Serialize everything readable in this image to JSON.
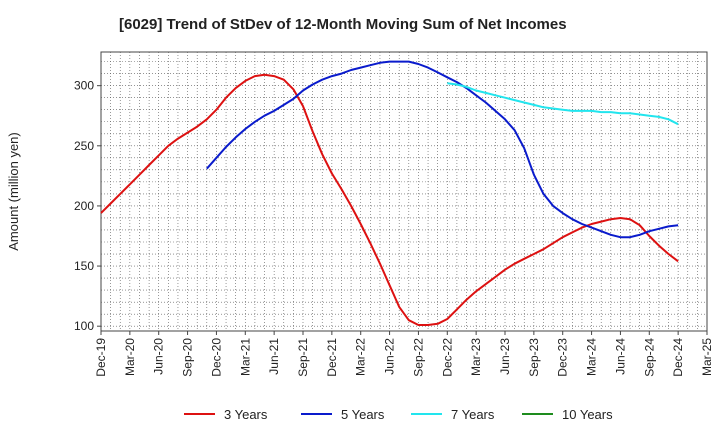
{
  "chart_data": {
    "type": "line",
    "title": "[6029]  Trend of StDev of 12-Month Moving Sum of Net Incomes",
    "ylabel": "Amount (million yen)",
    "xlabel": "",
    "ylim": [
      96,
      328
    ],
    "yticks": [
      100,
      150,
      200,
      250,
      300
    ],
    "xlim": [
      "2019-12",
      "2025-03"
    ],
    "xticks": [
      "Dec-19",
      "Mar-20",
      "Jun-20",
      "Sep-20",
      "Dec-20",
      "Mar-21",
      "Jun-21",
      "Sep-21",
      "Dec-21",
      "Mar-22",
      "Jun-22",
      "Sep-22",
      "Dec-22",
      "Mar-23",
      "Jun-23",
      "Sep-23",
      "Dec-23",
      "Mar-24",
      "Jun-24",
      "Sep-24",
      "Dec-24",
      "Mar-25"
    ],
    "grid": true,
    "legend_position": "bottom",
    "series": [
      {
        "name": "3 Years",
        "color": "#dd1111",
        "points": [
          [
            "2019-12",
            194
          ],
          [
            "2020-01",
            202
          ],
          [
            "2020-02",
            210
          ],
          [
            "2020-03",
            218
          ],
          [
            "2020-04",
            226
          ],
          [
            "2020-05",
            234
          ],
          [
            "2020-06",
            242
          ],
          [
            "2020-07",
            250
          ],
          [
            "2020-08",
            256
          ],
          [
            "2020-09",
            261
          ],
          [
            "2020-10",
            266
          ],
          [
            "2020-11",
            272
          ],
          [
            "2020-12",
            280
          ],
          [
            "2021-01",
            290
          ],
          [
            "2021-02",
            298
          ],
          [
            "2021-03",
            304
          ],
          [
            "2021-04",
            308
          ],
          [
            "2021-05",
            309
          ],
          [
            "2021-06",
            308
          ],
          [
            "2021-07",
            305
          ],
          [
            "2021-08",
            297
          ],
          [
            "2021-09",
            283
          ],
          [
            "2021-10",
            262
          ],
          [
            "2021-11",
            243
          ],
          [
            "2021-12",
            227
          ],
          [
            "2022-01",
            214
          ],
          [
            "2022-02",
            200
          ],
          [
            "2022-03",
            185
          ],
          [
            "2022-04",
            169
          ],
          [
            "2022-05",
            152
          ],
          [
            "2022-06",
            134
          ],
          [
            "2022-07",
            116
          ],
          [
            "2022-08",
            105
          ],
          [
            "2022-09",
            101
          ],
          [
            "2022-10",
            101
          ],
          [
            "2022-11",
            102
          ],
          [
            "2022-12",
            106
          ],
          [
            "2023-01",
            114
          ],
          [
            "2023-02",
            122
          ],
          [
            "2023-03",
            129
          ],
          [
            "2023-04",
            135
          ],
          [
            "2023-05",
            141
          ],
          [
            "2023-06",
            147
          ],
          [
            "2023-07",
            152
          ],
          [
            "2023-08",
            156
          ],
          [
            "2023-09",
            160
          ],
          [
            "2023-10",
            164
          ],
          [
            "2023-11",
            169
          ],
          [
            "2023-12",
            174
          ],
          [
            "2024-01",
            178
          ],
          [
            "2024-02",
            182
          ],
          [
            "2024-03",
            185
          ],
          [
            "2024-04",
            187
          ],
          [
            "2024-05",
            189
          ],
          [
            "2024-06",
            190
          ],
          [
            "2024-07",
            189
          ],
          [
            "2024-08",
            184
          ],
          [
            "2024-09",
            175
          ],
          [
            "2024-10",
            167
          ],
          [
            "2024-11",
            160
          ],
          [
            "2024-12",
            154
          ]
        ]
      },
      {
        "name": "5 Years",
        "color": "#0a1bcc",
        "points": [
          [
            "2020-11",
            231
          ],
          [
            "2020-12",
            240
          ],
          [
            "2021-01",
            249
          ],
          [
            "2021-02",
            257
          ],
          [
            "2021-03",
            264
          ],
          [
            "2021-04",
            270
          ],
          [
            "2021-05",
            275
          ],
          [
            "2021-06",
            279
          ],
          [
            "2021-07",
            284
          ],
          [
            "2021-08",
            289
          ],
          [
            "2021-09",
            296
          ],
          [
            "2021-10",
            301
          ],
          [
            "2021-11",
            305
          ],
          [
            "2021-12",
            308
          ],
          [
            "2022-01",
            310
          ],
          [
            "2022-02",
            313
          ],
          [
            "2022-03",
            315
          ],
          [
            "2022-04",
            317
          ],
          [
            "2022-05",
            319
          ],
          [
            "2022-06",
            320
          ],
          [
            "2022-07",
            320
          ],
          [
            "2022-08",
            320
          ],
          [
            "2022-09",
            318
          ],
          [
            "2022-10",
            315
          ],
          [
            "2022-11",
            311
          ],
          [
            "2022-12",
            307
          ],
          [
            "2023-01",
            303
          ],
          [
            "2023-02",
            298
          ],
          [
            "2023-03",
            292
          ],
          [
            "2023-04",
            286
          ],
          [
            "2023-05",
            279
          ],
          [
            "2023-06",
            272
          ],
          [
            "2023-07",
            263
          ],
          [
            "2023-08",
            248
          ],
          [
            "2023-09",
            226
          ],
          [
            "2023-10",
            210
          ],
          [
            "2023-11",
            200
          ],
          [
            "2023-12",
            194
          ],
          [
            "2024-01",
            189
          ],
          [
            "2024-02",
            185
          ],
          [
            "2024-03",
            182
          ],
          [
            "2024-04",
            179
          ],
          [
            "2024-05",
            176
          ],
          [
            "2024-06",
            174
          ],
          [
            "2024-07",
            174
          ],
          [
            "2024-08",
            176
          ],
          [
            "2024-09",
            179
          ],
          [
            "2024-10",
            181
          ],
          [
            "2024-11",
            183
          ],
          [
            "2024-12",
            184
          ]
        ]
      },
      {
        "name": "7 Years",
        "color": "#22e5ee",
        "points": [
          [
            "2022-12",
            302
          ],
          [
            "2023-01",
            301
          ],
          [
            "2023-02",
            299
          ],
          [
            "2023-03",
            296
          ],
          [
            "2023-04",
            294
          ],
          [
            "2023-05",
            292
          ],
          [
            "2023-06",
            290
          ],
          [
            "2023-07",
            288
          ],
          [
            "2023-08",
            286
          ],
          [
            "2023-09",
            284
          ],
          [
            "2023-10",
            282
          ],
          [
            "2023-11",
            281
          ],
          [
            "2023-12",
            280
          ],
          [
            "2024-01",
            279
          ],
          [
            "2024-02",
            279
          ],
          [
            "2024-03",
            279
          ],
          [
            "2024-04",
            278
          ],
          [
            "2024-05",
            278
          ],
          [
            "2024-06",
            277
          ],
          [
            "2024-07",
            277
          ],
          [
            "2024-08",
            276
          ],
          [
            "2024-09",
            275
          ],
          [
            "2024-10",
            274
          ],
          [
            "2024-11",
            272
          ],
          [
            "2024-12",
            268
          ]
        ]
      },
      {
        "name": "10 Years",
        "color": "#1e8c1e",
        "points": []
      }
    ]
  }
}
